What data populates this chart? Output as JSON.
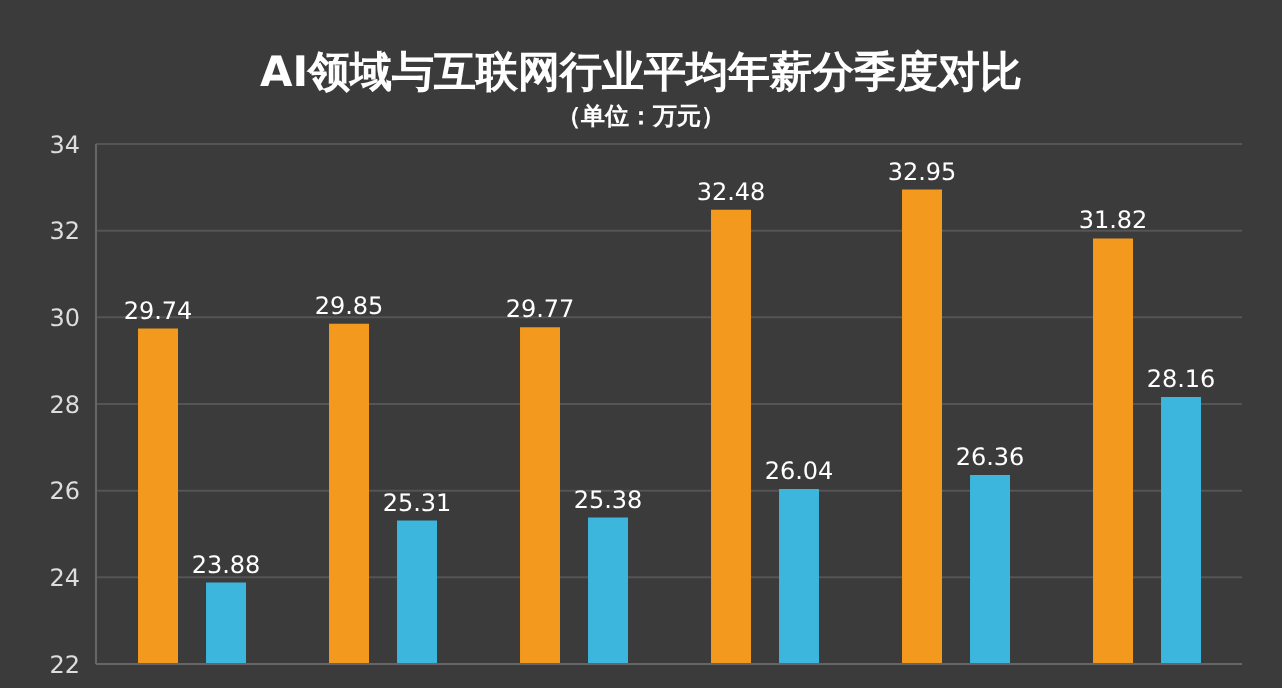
{
  "chart_data": {
    "type": "bar",
    "title": "AI领域与互联网行业平均年薪分季度对比",
    "subtitle": "（单位：万元）",
    "categories": [
      null,
      null,
      null,
      null,
      null,
      null
    ],
    "series": [
      {
        "color": "#f39a1e",
        "values": [
          29.74,
          29.85,
          29.77,
          32.48,
          32.95,
          31.82
        ]
      },
      {
        "color": "#3cb6dc",
        "values": [
          23.88,
          25.31,
          25.38,
          26.04,
          26.36,
          28.16
        ]
      }
    ],
    "ylim": [
      22,
      34
    ],
    "yticks": [
      22,
      24,
      26,
      28,
      30,
      32,
      34
    ],
    "grid": "y",
    "data_labels": true
  }
}
